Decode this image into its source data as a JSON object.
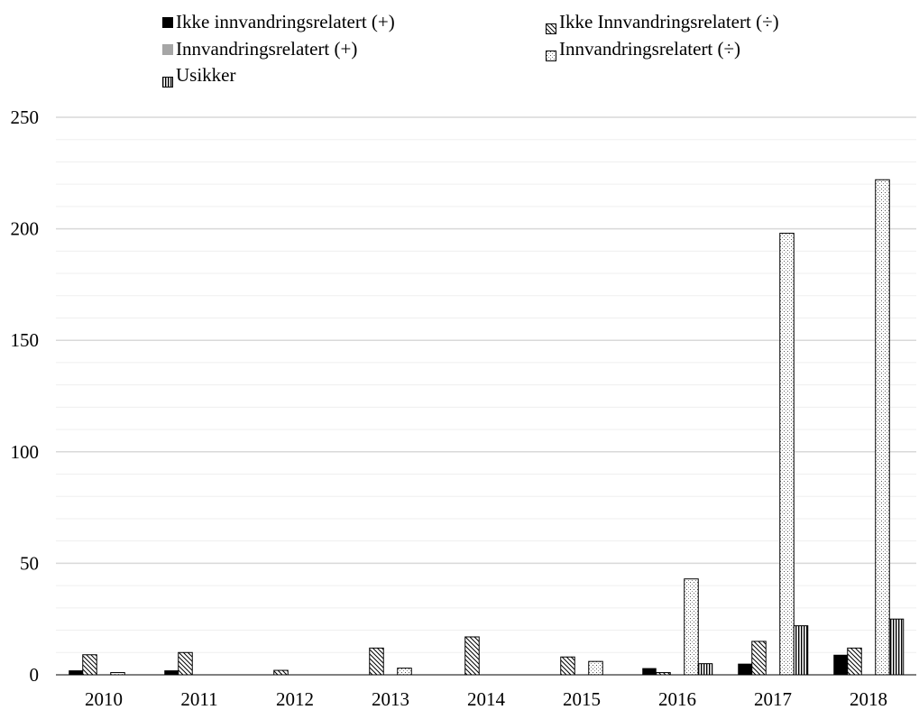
{
  "chart_data": {
    "type": "bar",
    "categories": [
      "2010",
      "2011",
      "2012",
      "2013",
      "2014",
      "2015",
      "2016",
      "2017",
      "2018"
    ],
    "series": [
      {
        "name": "Ikke innvandringsrelatert (+)",
        "pattern": "solid-black",
        "values": [
          2,
          2,
          0,
          0,
          0,
          0,
          3,
          5,
          9
        ]
      },
      {
        "name": "Ikke Innvandringsrelatert (÷)",
        "pattern": "diagonal-hatch",
        "values": [
          9,
          10,
          2,
          12,
          17,
          8,
          1,
          15,
          12
        ]
      },
      {
        "name": "Innvandringsrelatert (+)",
        "pattern": "solid-gray",
        "values": [
          0,
          0,
          0,
          0,
          0,
          0,
          0,
          0,
          0
        ]
      },
      {
        "name": "Innvandringsrelatert (÷)",
        "pattern": "dots",
        "values": [
          1,
          0,
          0,
          3,
          0,
          6,
          43,
          198,
          222
        ]
      },
      {
        "name": "Usikker",
        "pattern": "vertical-stripes",
        "values": [
          0,
          0,
          0,
          0,
          0,
          0,
          5,
          22,
          25
        ]
      }
    ],
    "ylim": [
      0,
      250
    ],
    "yticks": [
      "0",
      "50",
      "100",
      "150",
      "200",
      "250"
    ],
    "grid": true,
    "legend_position": "top",
    "colors": {
      "gridline": "#d9d9d9",
      "axis": "#000000",
      "gray": "#a6a6a6"
    }
  }
}
